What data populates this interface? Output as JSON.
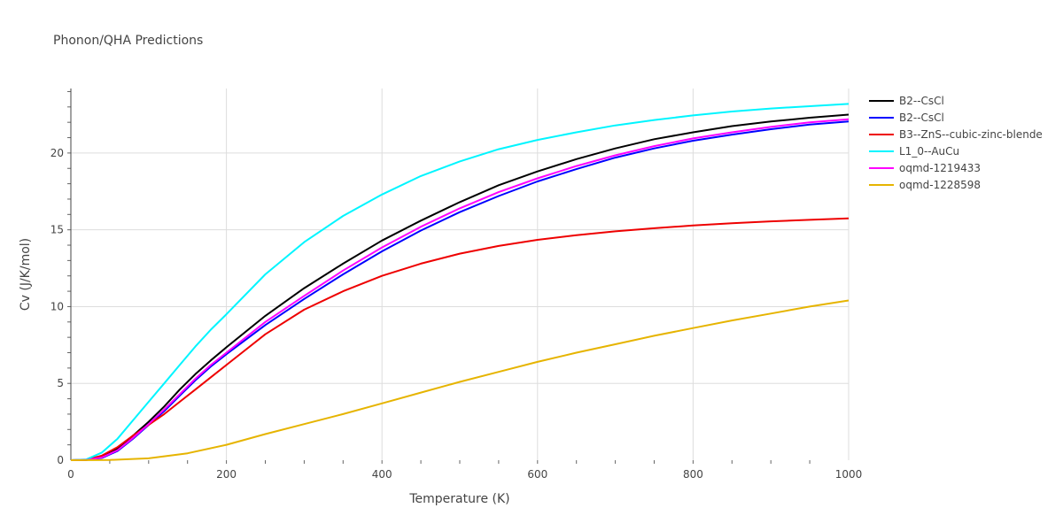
{
  "chart_data": {
    "type": "line",
    "title": "Phonon/QHA Predictions",
    "xlabel": "Temperature (K)",
    "ylabel": "Cv (J/K/mol)",
    "xlim": [
      0,
      1000
    ],
    "ylim": [
      0,
      24.2
    ],
    "x_ticks": [
      0,
      200,
      400,
      600,
      800,
      1000
    ],
    "y_ticks": [
      0,
      5,
      10,
      15,
      20
    ],
    "grid": true,
    "legend_position": "top-right, outside plot area",
    "series": [
      {
        "name": "B2--CsCl",
        "color": "#000000",
        "points": [
          [
            0,
            0
          ],
          [
            20,
            0.02
          ],
          [
            40,
            0.2
          ],
          [
            60,
            0.75
          ],
          [
            80,
            1.6
          ],
          [
            100,
            2.5
          ],
          [
            120,
            3.5
          ],
          [
            140,
            4.6
          ],
          [
            160,
            5.6
          ],
          [
            180,
            6.5
          ],
          [
            200,
            7.35
          ],
          [
            250,
            9.4
          ],
          [
            300,
            11.2
          ],
          [
            350,
            12.8
          ],
          [
            400,
            14.3
          ],
          [
            450,
            15.6
          ],
          [
            500,
            16.8
          ],
          [
            550,
            17.9
          ],
          [
            600,
            18.8
          ],
          [
            650,
            19.6
          ],
          [
            700,
            20.3
          ],
          [
            750,
            20.9
          ],
          [
            800,
            21.35
          ],
          [
            850,
            21.75
          ],
          [
            900,
            22.05
          ],
          [
            950,
            22.3
          ],
          [
            1000,
            22.5
          ]
        ]
      },
      {
        "name": "B2--CsCl",
        "color": "#0000ff",
        "points": [
          [
            0,
            0
          ],
          [
            20,
            0.01
          ],
          [
            40,
            0.15
          ],
          [
            60,
            0.6
          ],
          [
            80,
            1.4
          ],
          [
            100,
            2.3
          ],
          [
            120,
            3.2
          ],
          [
            140,
            4.2
          ],
          [
            160,
            5.2
          ],
          [
            180,
            6.1
          ],
          [
            200,
            6.9
          ],
          [
            250,
            8.8
          ],
          [
            300,
            10.5
          ],
          [
            350,
            12.1
          ],
          [
            400,
            13.6
          ],
          [
            450,
            14.95
          ],
          [
            500,
            16.15
          ],
          [
            550,
            17.2
          ],
          [
            600,
            18.15
          ],
          [
            650,
            18.95
          ],
          [
            700,
            19.7
          ],
          [
            750,
            20.3
          ],
          [
            800,
            20.8
          ],
          [
            850,
            21.2
          ],
          [
            900,
            21.55
          ],
          [
            950,
            21.85
          ],
          [
            1000,
            22.05
          ]
        ]
      },
      {
        "name": "B3--ZnS--cubic-zinc-blende",
        "color": "#ee0000",
        "points": [
          [
            0,
            0
          ],
          [
            20,
            0.03
          ],
          [
            40,
            0.3
          ],
          [
            60,
            0.85
          ],
          [
            80,
            1.6
          ],
          [
            100,
            2.3
          ],
          [
            120,
            3.0
          ],
          [
            140,
            3.8
          ],
          [
            160,
            4.6
          ],
          [
            180,
            5.4
          ],
          [
            200,
            6.2
          ],
          [
            250,
            8.2
          ],
          [
            300,
            9.8
          ],
          [
            350,
            11.0
          ],
          [
            400,
            12.0
          ],
          [
            450,
            12.8
          ],
          [
            500,
            13.45
          ],
          [
            550,
            13.95
          ],
          [
            600,
            14.35
          ],
          [
            650,
            14.65
          ],
          [
            700,
            14.9
          ],
          [
            750,
            15.1
          ],
          [
            800,
            15.28
          ],
          [
            850,
            15.43
          ],
          [
            900,
            15.55
          ],
          [
            950,
            15.65
          ],
          [
            1000,
            15.75
          ]
        ]
      },
      {
        "name": "L1_0--AuCu",
        "color": "#00f5ff",
        "points": [
          [
            0,
            0
          ],
          [
            20,
            0.05
          ],
          [
            40,
            0.5
          ],
          [
            60,
            1.4
          ],
          [
            80,
            2.6
          ],
          [
            100,
            3.8
          ],
          [
            120,
            5.0
          ],
          [
            140,
            6.2
          ],
          [
            160,
            7.4
          ],
          [
            180,
            8.5
          ],
          [
            200,
            9.5
          ],
          [
            250,
            12.1
          ],
          [
            300,
            14.2
          ],
          [
            350,
            15.9
          ],
          [
            400,
            17.3
          ],
          [
            450,
            18.5
          ],
          [
            500,
            19.45
          ],
          [
            550,
            20.25
          ],
          [
            600,
            20.85
          ],
          [
            650,
            21.35
          ],
          [
            700,
            21.8
          ],
          [
            750,
            22.15
          ],
          [
            800,
            22.45
          ],
          [
            850,
            22.7
          ],
          [
            900,
            22.9
          ],
          [
            950,
            23.05
          ],
          [
            1000,
            23.2
          ]
        ]
      },
      {
        "name": "oqmd-1219433",
        "color": "#ff00ff",
        "points": [
          [
            0,
            0
          ],
          [
            20,
            0.01
          ],
          [
            40,
            0.18
          ],
          [
            60,
            0.65
          ],
          [
            80,
            1.45
          ],
          [
            100,
            2.35
          ],
          [
            120,
            3.3
          ],
          [
            140,
            4.3
          ],
          [
            160,
            5.3
          ],
          [
            180,
            6.2
          ],
          [
            200,
            7.0
          ],
          [
            250,
            9.0
          ],
          [
            300,
            10.7
          ],
          [
            350,
            12.35
          ],
          [
            400,
            13.85
          ],
          [
            450,
            15.2
          ],
          [
            500,
            16.4
          ],
          [
            550,
            17.45
          ],
          [
            600,
            18.35
          ],
          [
            650,
            19.15
          ],
          [
            700,
            19.85
          ],
          [
            750,
            20.45
          ],
          [
            800,
            20.95
          ],
          [
            850,
            21.35
          ],
          [
            900,
            21.7
          ],
          [
            950,
            22.0
          ],
          [
            1000,
            22.2
          ]
        ]
      },
      {
        "name": "oqmd-1228598",
        "color": "#e6b400",
        "points": [
          [
            0,
            0
          ],
          [
            50,
            0.02
          ],
          [
            100,
            0.12
          ],
          [
            150,
            0.45
          ],
          [
            200,
            1.0
          ],
          [
            250,
            1.7
          ],
          [
            300,
            2.35
          ],
          [
            350,
            3.0
          ],
          [
            400,
            3.7
          ],
          [
            450,
            4.4
          ],
          [
            500,
            5.1
          ],
          [
            550,
            5.75
          ],
          [
            600,
            6.4
          ],
          [
            650,
            7.0
          ],
          [
            700,
            7.55
          ],
          [
            750,
            8.1
          ],
          [
            800,
            8.6
          ],
          [
            850,
            9.1
          ],
          [
            900,
            9.55
          ],
          [
            950,
            10.0
          ],
          [
            1000,
            10.4
          ]
        ]
      }
    ]
  }
}
